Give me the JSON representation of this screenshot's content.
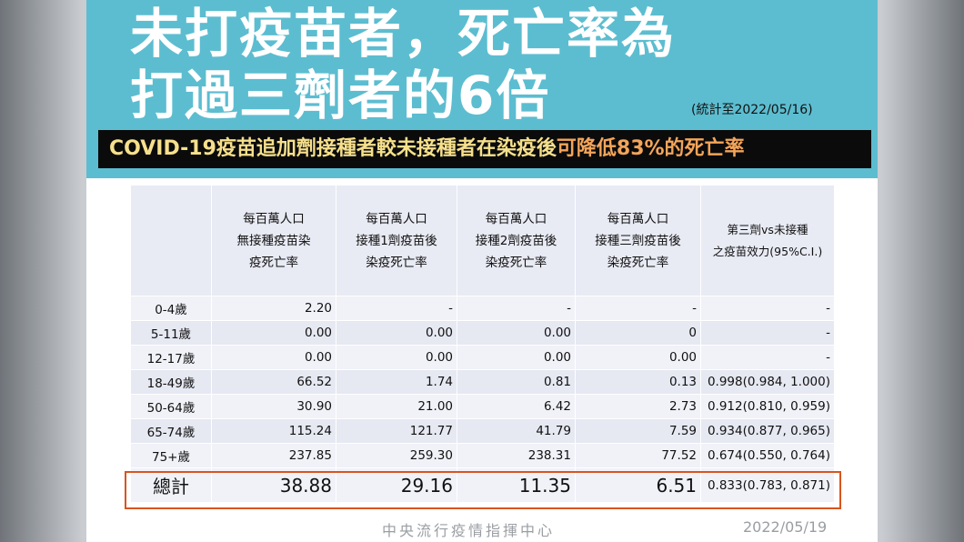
{
  "header": {
    "title": [
      "未打疫苗者，死亡率為",
      "打過三劑者的6倍"
    ],
    "note": "(統計至2022/05/16)",
    "subtitle": "COVID-19疫苗追加劑接種者較未接種者在染疫後",
    "subtitle_highlight": "可降低83%的死亡率"
  },
  "table": {
    "columns": [
      [
        "每百萬人口",
        "無接種疫苗染",
        "疫死亡率"
      ],
      [
        "每百萬人口",
        "接種1劑疫苗後",
        "染疫死亡率"
      ],
      [
        "每百萬人口",
        "接種2劑疫苗後",
        "染疫死亡率"
      ],
      [
        "每百萬人口",
        "接種三劑疫苗後",
        "染疫死亡率"
      ],
      [
        "第三劑vs未接種",
        "之疫苗效力(95%C.I.)"
      ]
    ],
    "rows": [
      [
        "0-4歲",
        "2.20",
        "-",
        "-",
        "-",
        "-"
      ],
      [
        "5-11歲",
        "0.00",
        "0.00",
        "0.00",
        "0",
        "-"
      ],
      [
        "12-17歲",
        "0.00",
        "0.00",
        "0.00",
        "0.00",
        "-"
      ],
      [
        "18-49歲",
        "66.52",
        "1.74",
        "0.81",
        "0.13",
        "0.998(0.984, 1.000)"
      ],
      [
        "50-64歲",
        "30.90",
        "21.00",
        "6.42",
        "2.73",
        "0.912(0.810, 0.959)"
      ],
      [
        "65-74歲",
        "115.24",
        "121.77",
        "41.79",
        "7.59",
        "0.934(0.877, 0.965)"
      ],
      [
        "75+歲",
        "237.85",
        "259.30",
        "238.31",
        "77.52",
        "0.674(0.550, 0.764)"
      ]
    ],
    "total": [
      "總計",
      "38.88",
      "29.16",
      "11.35",
      "6.51",
      "0.833(0.783, 0.871)"
    ]
  },
  "footer": {
    "source": "中央流行疫情指揮中心",
    "date": "2022/05/19"
  }
}
